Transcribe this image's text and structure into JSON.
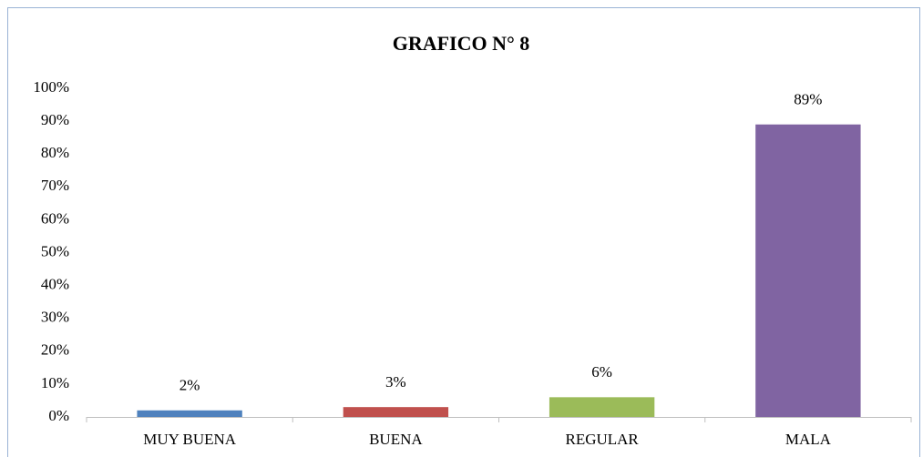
{
  "chart_data": {
    "type": "bar",
    "title": "GRAFICO N° 8",
    "categories": [
      "MUY BUENA",
      "BUENA",
      "REGULAR",
      "MALA"
    ],
    "values": [
      2,
      3,
      6,
      89
    ],
    "value_labels": [
      "2%",
      "3%",
      "6%",
      "89%"
    ],
    "colors": [
      "#4f81bd",
      "#c0504d",
      "#9bbb59",
      "#8064a2"
    ],
    "ylim": [
      0,
      100
    ],
    "yticks": [
      {
        "value": 0,
        "label": "0%"
      },
      {
        "value": 10,
        "label": "10%"
      },
      {
        "value": 20,
        "label": "20%"
      },
      {
        "value": 30,
        "label": "30%"
      },
      {
        "value": 40,
        "label": "40%"
      },
      {
        "value": 50,
        "label": "50%"
      },
      {
        "value": 60,
        "label": "60%"
      },
      {
        "value": 70,
        "label": "70%"
      },
      {
        "value": 80,
        "label": "80%"
      },
      {
        "value": 90,
        "label": "90%"
      },
      {
        "value": 100,
        "label": "100%"
      }
    ],
    "grid": false
  }
}
